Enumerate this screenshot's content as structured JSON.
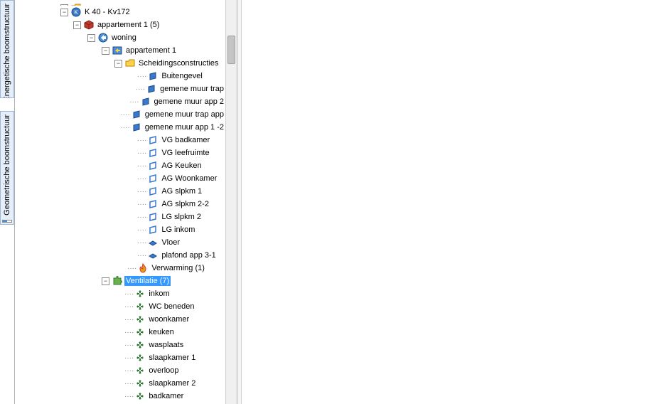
{
  "sideTabs": [
    {
      "label": "Energetische boomstructuur"
    },
    {
      "label": "Geometrische boomstructuur"
    }
  ],
  "tree": {
    "root": {
      "label": "K 40 - Kv172",
      "icon": "k-ball",
      "toggle": "minus",
      "indent": 64
    },
    "app1": {
      "label": "appartement 1 (5)",
      "icon": "red-cube",
      "toggle": "minus",
      "indent": 82
    },
    "woning": {
      "label": "woning",
      "icon": "blue-arrow",
      "toggle": "minus",
      "indent": 102
    },
    "app1b": {
      "label": "appartement 1",
      "icon": "window-arrow",
      "toggle": "minus",
      "indent": 122
    },
    "scheiding": {
      "label": "Scheidingsconstructies",
      "icon": "folder",
      "toggle": "minus",
      "indent": 140
    },
    "walls": [
      {
        "label": "Buitengevel",
        "icon": "wall-solid",
        "indent": 172
      },
      {
        "label": "gemene muur trap",
        "icon": "wall-solid",
        "indent": 172
      },
      {
        "label": "gemene muur app 2",
        "icon": "wall-solid",
        "indent": 172
      },
      {
        "label": " gemene muur trap app",
        "icon": "wall-solid",
        "indent": 172
      },
      {
        "label": "gemene muur app 1 -2",
        "icon": "wall-solid",
        "indent": 172
      },
      {
        "label": "VG badkamer",
        "icon": "wall-outline",
        "indent": 172
      },
      {
        "label": "VG leefruimte",
        "icon": "wall-outline",
        "indent": 172
      },
      {
        "label": "AG Keuken",
        "icon": "wall-outline",
        "indent": 172
      },
      {
        "label": "AG Woonkamer",
        "icon": "wall-outline",
        "indent": 172
      },
      {
        "label": "AG slpkm 1",
        "icon": "wall-outline",
        "indent": 172
      },
      {
        "label": " AG slpkm 2-2",
        "icon": "wall-outline",
        "indent": 172
      },
      {
        "label": "LG slpkm 2",
        "icon": "wall-outline",
        "indent": 172
      },
      {
        "label": "LG inkom",
        "icon": "wall-outline",
        "indent": 172
      },
      {
        "label": "Vloer",
        "icon": "floor",
        "indent": 172
      },
      {
        "label": "plafond app 3-1",
        "icon": "floor",
        "indent": 172
      }
    ],
    "verwarming": {
      "label": "Verwarming (1)",
      "icon": "flame",
      "indent": 158
    },
    "ventilatie": {
      "label": "Ventilatie (7)",
      "icon": "puzzle",
      "toggle": "minus",
      "indent": 122,
      "selected": true
    },
    "ventItems": [
      {
        "label": "inkom",
        "icon": "arrows",
        "indent": 154
      },
      {
        "label": "WC beneden",
        "icon": "arrows",
        "indent": 154
      },
      {
        "label": "woonkamer",
        "icon": "arrows",
        "indent": 154
      },
      {
        "label": "keuken",
        "icon": "arrows",
        "indent": 154
      },
      {
        "label": "wasplaats",
        "icon": "arrows",
        "indent": 154
      },
      {
        "label": "slaapkamer 1",
        "icon": "arrows",
        "indent": 154
      },
      {
        "label": "overloop",
        "icon": "arrows",
        "indent": 154
      },
      {
        "label": "slaapkamer 2",
        "icon": "arrows",
        "indent": 154
      },
      {
        "label": "badkamer",
        "icon": "arrows",
        "indent": 154
      }
    ]
  },
  "colors": {
    "selection": "#3399ff",
    "border": "#b0b0b0"
  }
}
